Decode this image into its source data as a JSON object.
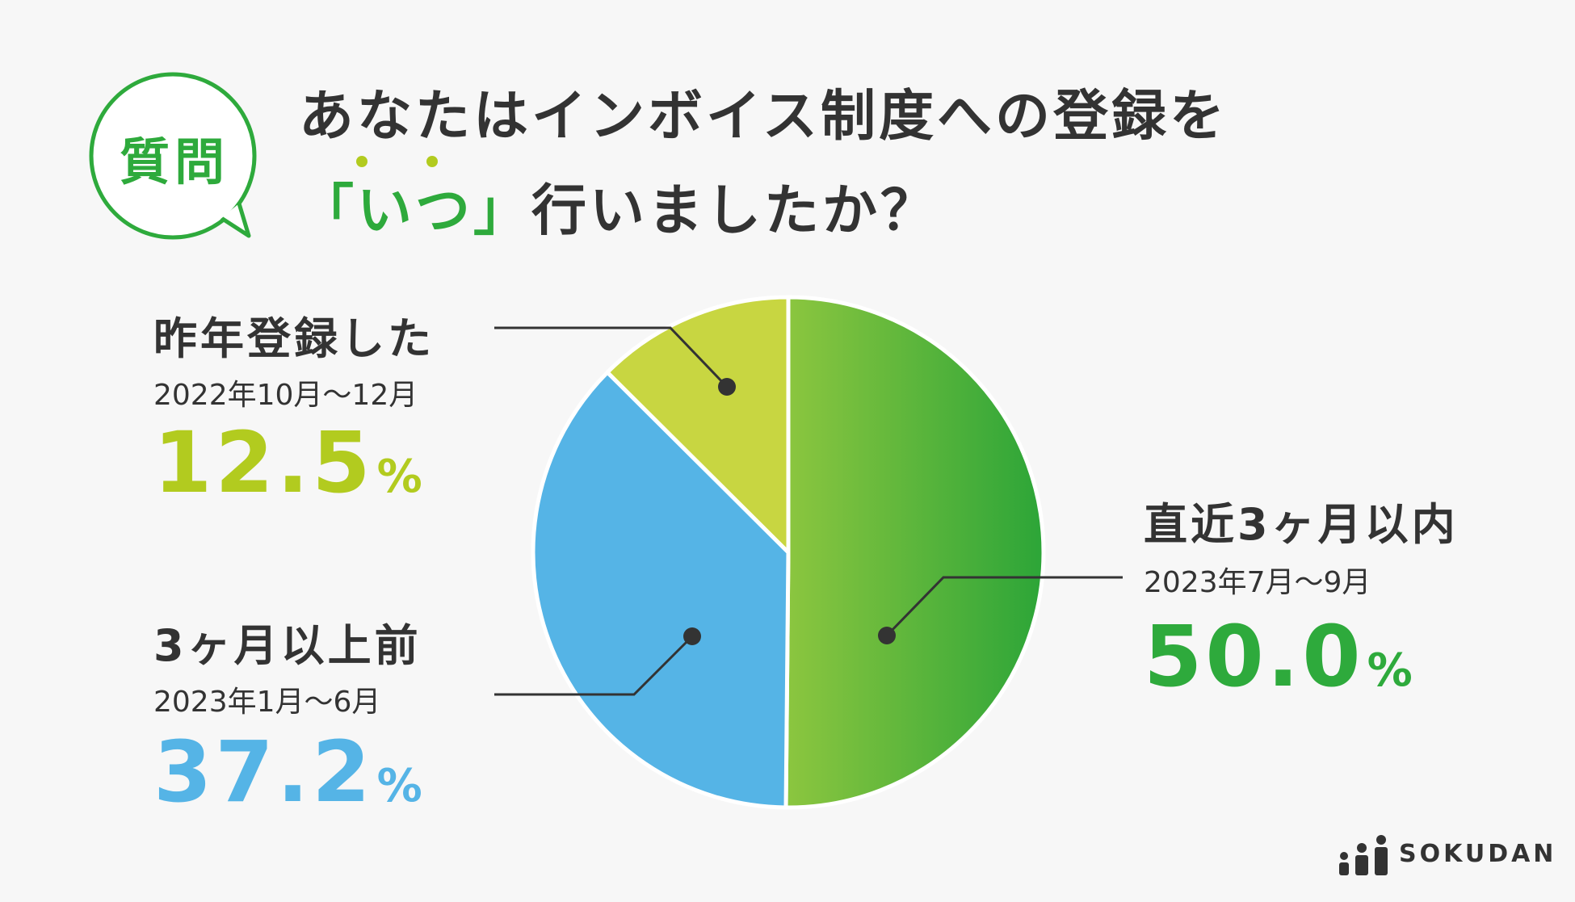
{
  "question": {
    "badge": "質問",
    "title_line1": "あなたはインボイス制度への登録を",
    "title_open": "「",
    "title_highlight": "いつ",
    "title_close": "」",
    "title_rest": "行いましたか？"
  },
  "colors": {
    "accent": "#2eaa3c",
    "text": "#333333",
    "background": "#f7f7f7"
  },
  "chart_data": {
    "type": "pie",
    "slices": [
      {
        "name": "直近3ヶ月以内",
        "range": "2023年7月〜9月",
        "value": 50.0,
        "value_text": "50.0",
        "unit": "%",
        "color_start": "#8cc63f",
        "color_end": "#2ca538",
        "text_color": "#2eaa3c"
      },
      {
        "name": "3ヶ月以上前",
        "range": "2023年1月〜6月",
        "value": 37.2,
        "value_text": "37.2",
        "unit": "%",
        "color_start": "#55b4e6",
        "color_end": "#55b4e6",
        "text_color": "#55b4e6"
      },
      {
        "name": "昨年登録した",
        "range": "2022年10月〜12月",
        "value": 12.5,
        "value_text": "12.5",
        "unit": "%",
        "color_start": "#c8d641",
        "color_end": "#c8d641",
        "text_color": "#b2cb1f"
      }
    ]
  },
  "brand": {
    "name": "SOKUDAN"
  }
}
